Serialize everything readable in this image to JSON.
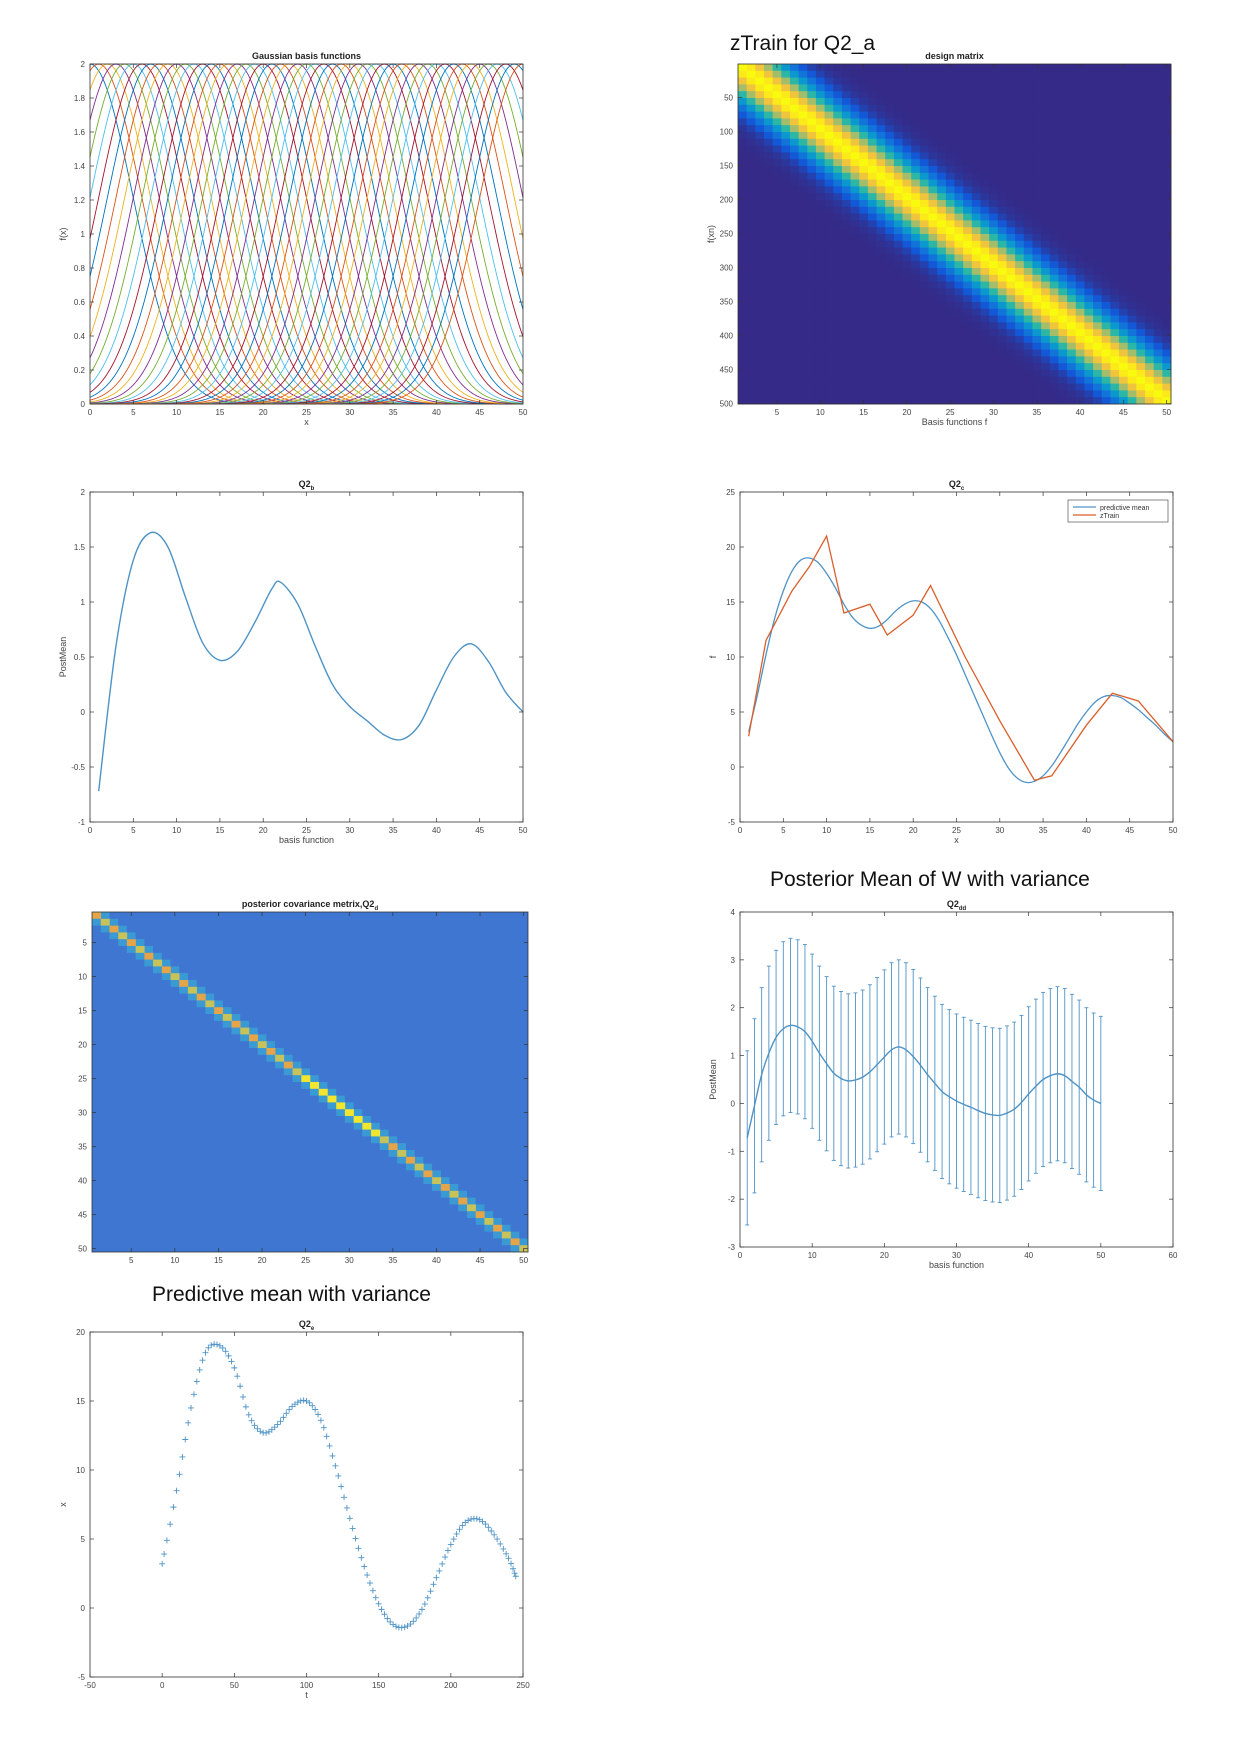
{
  "headings": {
    "top_right": "zTrain for Q2_a",
    "middle_right": "Posterior Mean of W with variance",
    "bottom_left": "Predictive mean with variance"
  },
  "charts": {
    "basis": {
      "type": "line",
      "title": "Gaussian basis functions",
      "xlabel": "x",
      "ylabel": "f(x)",
      "xlim": [
        0,
        50
      ],
      "ylim": [
        0,
        2
      ],
      "xticks": [
        0,
        5,
        10,
        15,
        20,
        25,
        30,
        35,
        40,
        45,
        50
      ],
      "yticks": [
        0,
        0.2,
        0.4,
        0.6,
        0.8,
        1,
        1.2,
        1.4,
        1.6,
        1.8,
        2
      ],
      "grid": false,
      "centers": [
        0,
        1,
        2,
        3,
        4,
        5,
        6,
        7,
        8,
        9,
        10,
        11,
        12,
        13,
        14,
        15,
        16,
        17,
        18,
        19,
        20,
        21,
        22,
        23,
        24,
        25,
        26,
        27,
        28,
        29,
        30,
        31,
        32,
        33,
        34,
        35,
        36,
        37,
        38,
        39,
        40,
        41,
        42,
        43,
        44,
        45,
        46,
        47,
        48,
        49,
        50
      ],
      "amplitude": 2,
      "width": 5,
      "colors": [
        "#0072bd",
        "#d95319",
        "#edb120",
        "#7e2f8e",
        "#77ac30",
        "#4dbeee",
        "#a2142f"
      ]
    },
    "design": {
      "type": "heatmap",
      "title": "design matrix",
      "xlabel": "Basis functions f",
      "ylabel": "f(xn)",
      "xlim": [
        0.5,
        50.5
      ],
      "ylim": [
        0.5,
        500.5
      ],
      "xticks": [
        5,
        10,
        15,
        20,
        25,
        30,
        35,
        40,
        45,
        50
      ],
      "yticks": [
        50,
        100,
        150,
        200,
        250,
        300,
        350,
        400,
        450,
        500
      ],
      "band_width": 5,
      "colormap": [
        "#352a87",
        "#0f5cdd",
        "#1481d6",
        "#06a4ca",
        "#2eb7a4",
        "#87bf77",
        "#d1bb59",
        "#fec832",
        "#f9fb0e"
      ]
    },
    "postmean": {
      "type": "line",
      "title": "Q2",
      "title_sub": "b",
      "xlabel": "basis function",
      "ylabel": "PostMean",
      "xlim": [
        0,
        50
      ],
      "ylim": [
        -1,
        2
      ],
      "xticks": [
        0,
        5,
        10,
        15,
        20,
        25,
        30,
        35,
        40,
        45,
        50
      ],
      "yticks": [
        -1,
        -0.5,
        0,
        0.5,
        1,
        1.5,
        2
      ],
      "color": "#4f93c6",
      "x": [
        1,
        3,
        5,
        7,
        9,
        11,
        13,
        15,
        17,
        19,
        21,
        22,
        24,
        26,
        28,
        30,
        32,
        34,
        36,
        38,
        40,
        42,
        44,
        46,
        48,
        50
      ],
      "y": [
        -0.72,
        0.6,
        1.38,
        1.63,
        1.5,
        1.05,
        0.63,
        0.47,
        0.55,
        0.81,
        1.12,
        1.18,
        0.98,
        0.6,
        0.25,
        0.05,
        -0.08,
        -0.21,
        -0.25,
        -0.12,
        0.2,
        0.5,
        0.62,
        0.46,
        0.18,
        0.0
      ]
    },
    "predict": {
      "type": "line",
      "title": "Q2",
      "title_sub": "c",
      "xlabel": "x",
      "ylabel": "f",
      "xlim": [
        0,
        50
      ],
      "ylim": [
        -5,
        25
      ],
      "xticks": [
        0,
        5,
        10,
        15,
        20,
        25,
        30,
        35,
        40,
        45,
        50
      ],
      "yticks": [
        -5,
        0,
        5,
        10,
        15,
        20,
        25
      ],
      "legend_position": "top-right",
      "series": [
        {
          "name": "predictive mean",
          "color": "#4f93c6",
          "x": [
            1,
            2,
            3,
            4,
            5,
            6,
            7,
            8,
            9,
            10,
            11,
            12,
            13,
            14,
            15,
            16,
            17,
            18,
            19,
            20,
            21,
            22,
            23,
            24,
            25,
            26,
            27,
            28,
            29,
            30,
            31,
            32,
            33,
            34,
            35,
            36,
            37,
            38,
            39,
            40,
            41,
            42,
            43,
            44,
            45,
            46,
            47,
            48,
            49,
            50
          ],
          "y": [
            3.2,
            6.5,
            10.2,
            13.5,
            16.0,
            17.8,
            18.8,
            19.0,
            18.6,
            17.6,
            16.3,
            14.8,
            13.6,
            12.9,
            12.6,
            12.8,
            13.4,
            14.2,
            14.8,
            15.1,
            15.0,
            14.4,
            13.3,
            11.8,
            10.2,
            8.4,
            6.6,
            4.8,
            3.0,
            1.3,
            -0.1,
            -1.0,
            -1.4,
            -1.3,
            -0.8,
            0.1,
            1.3,
            2.6,
            3.9,
            5.0,
            5.9,
            6.4,
            6.5,
            6.3,
            5.8,
            5.2,
            4.5,
            3.8,
            3.0,
            2.3
          ]
        },
        {
          "name": "zTrain",
          "color": "#d95f2b",
          "x": [
            1,
            3,
            6,
            8,
            10,
            12,
            15,
            17,
            20,
            22,
            26,
            30,
            34,
            36,
            40,
            43,
            46,
            50
          ],
          "y": [
            2.8,
            11.5,
            16.0,
            18.2,
            21.0,
            14.0,
            14.8,
            12.0,
            13.8,
            16.5,
            10.0,
            4.2,
            -1.2,
            -0.8,
            3.8,
            6.7,
            6.0,
            2.3
          ]
        }
      ]
    },
    "covariance": {
      "type": "heatmap",
      "title": "posterior covariance metrix,Q2",
      "title_sub": "d",
      "xlim": [
        0.5,
        50.5
      ],
      "ylim": [
        0.5,
        50.5
      ],
      "xticks": [
        5,
        10,
        15,
        20,
        25,
        30,
        35,
        40,
        45,
        50
      ],
      "yticks": [
        5,
        10,
        15,
        20,
        25,
        30,
        35,
        40,
        45,
        50
      ],
      "background": "#3f76d2",
      "near_diagonal": "#3a9bd4",
      "diagonal_colors": [
        "#e3a44a",
        "#c7c35a",
        "#f2e52f"
      ]
    },
    "errorbar": {
      "type": "line",
      "title": "Q2",
      "title_sub": "dd",
      "xlabel": "basis function",
      "ylabel": "PostMean",
      "xlim": [
        0,
        60
      ],
      "ylim": [
        -3,
        4
      ],
      "xticks": [
        0,
        10,
        20,
        30,
        40,
        50,
        60
      ],
      "yticks": [
        -3,
        -2,
        -1,
        0,
        1,
        2,
        3,
        4
      ],
      "color": "#4f93c6",
      "x": [
        1,
        2,
        3,
        4,
        5,
        6,
        7,
        8,
        9,
        10,
        11,
        12,
        13,
        14,
        15,
        16,
        17,
        18,
        19,
        20,
        21,
        22,
        23,
        24,
        25,
        26,
        27,
        28,
        29,
        30,
        31,
        32,
        33,
        34,
        35,
        36,
        37,
        38,
        39,
        40,
        41,
        42,
        43,
        44,
        45,
        46,
        47,
        48,
        49,
        50
      ],
      "y": [
        -0.72,
        -0.05,
        0.6,
        1.05,
        1.38,
        1.56,
        1.63,
        1.6,
        1.5,
        1.3,
        1.05,
        0.83,
        0.63,
        0.52,
        0.47,
        0.49,
        0.55,
        0.66,
        0.81,
        0.97,
        1.12,
        1.18,
        1.12,
        0.98,
        0.8,
        0.6,
        0.42,
        0.25,
        0.14,
        0.05,
        -0.02,
        -0.08,
        -0.15,
        -0.21,
        -0.24,
        -0.25,
        -0.2,
        -0.12,
        0.02,
        0.2,
        0.36,
        0.5,
        0.58,
        0.62,
        0.58,
        0.46,
        0.34,
        0.18,
        0.07,
        0.0
      ],
      "error": 1.82
    },
    "predvar": {
      "type": "scatter",
      "title": "Q2",
      "title_sub": "e",
      "xlabel": "t",
      "ylabel": "x",
      "xlim": [
        -50,
        250
      ],
      "ylim": [
        -5,
        20
      ],
      "xticks": [
        -50,
        0,
        50,
        100,
        150,
        200,
        250
      ],
      "yticks": [
        -5,
        0,
        5,
        10,
        15,
        20
      ],
      "color": "#4f93c6",
      "x": [
        0,
        10,
        20,
        30,
        40,
        50,
        60,
        70,
        80,
        90,
        100,
        110,
        120,
        130,
        140,
        150,
        160,
        170,
        180,
        190,
        200,
        210,
        220,
        230,
        240,
        245
      ],
      "y": [
        3.2,
        8.5,
        14.5,
        18.5,
        19.0,
        17.4,
        14.0,
        12.7,
        13.3,
        14.6,
        15.0,
        13.6,
        10.3,
        6.5,
        3.0,
        0.3,
        -1.2,
        -1.3,
        -0.1,
        2.2,
        4.6,
        6.2,
        6.4,
        5.3,
        3.6,
        2.3
      ]
    }
  }
}
